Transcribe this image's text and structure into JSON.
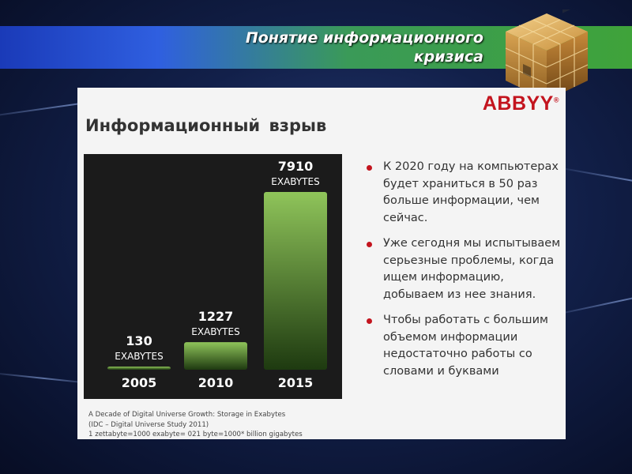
{
  "header": {
    "title_line1": "Понятие информационного",
    "title_line2": "кризиса"
  },
  "slide": {
    "logo": "ABBYY",
    "logo_mark": "®",
    "heading": "Информационный  взрыв",
    "bullets": [
      {
        "text": "К 2020 году на компьютерах будет храниться в 50 раз больше информации, чем сейчас."
      },
      {
        "text": "Уже сегодня мы испытываем серьезные проблемы, когда ищем информацию, добываем из нее знания."
      },
      {
        "text": "Чтобы работать с большим объемом информации недостаточно работы со словами и буквами"
      }
    ],
    "source_lines": [
      "A Decade of Digital Universe Growth: Storage in Exabytes",
      "(IDC – Digital Universe Study 2011)",
      "1 zettabyte=1000 exabyte= 021 byte=1000* billion  gigabytes"
    ]
  },
  "chart_data": {
    "type": "bar",
    "categories": [
      "2005",
      "2010",
      "2015"
    ],
    "values": [
      130,
      1227,
      7910
    ],
    "value_labels": [
      "130",
      "1227",
      "7910"
    ],
    "unit_label": "EXABYTES",
    "ylim": [
      0,
      7910
    ],
    "grid": false,
    "colors": {
      "background": "#1b1b1b",
      "bar_top": "#8fc45a",
      "bar_bottom": "#1e3a10",
      "text": "#ffffff"
    }
  }
}
